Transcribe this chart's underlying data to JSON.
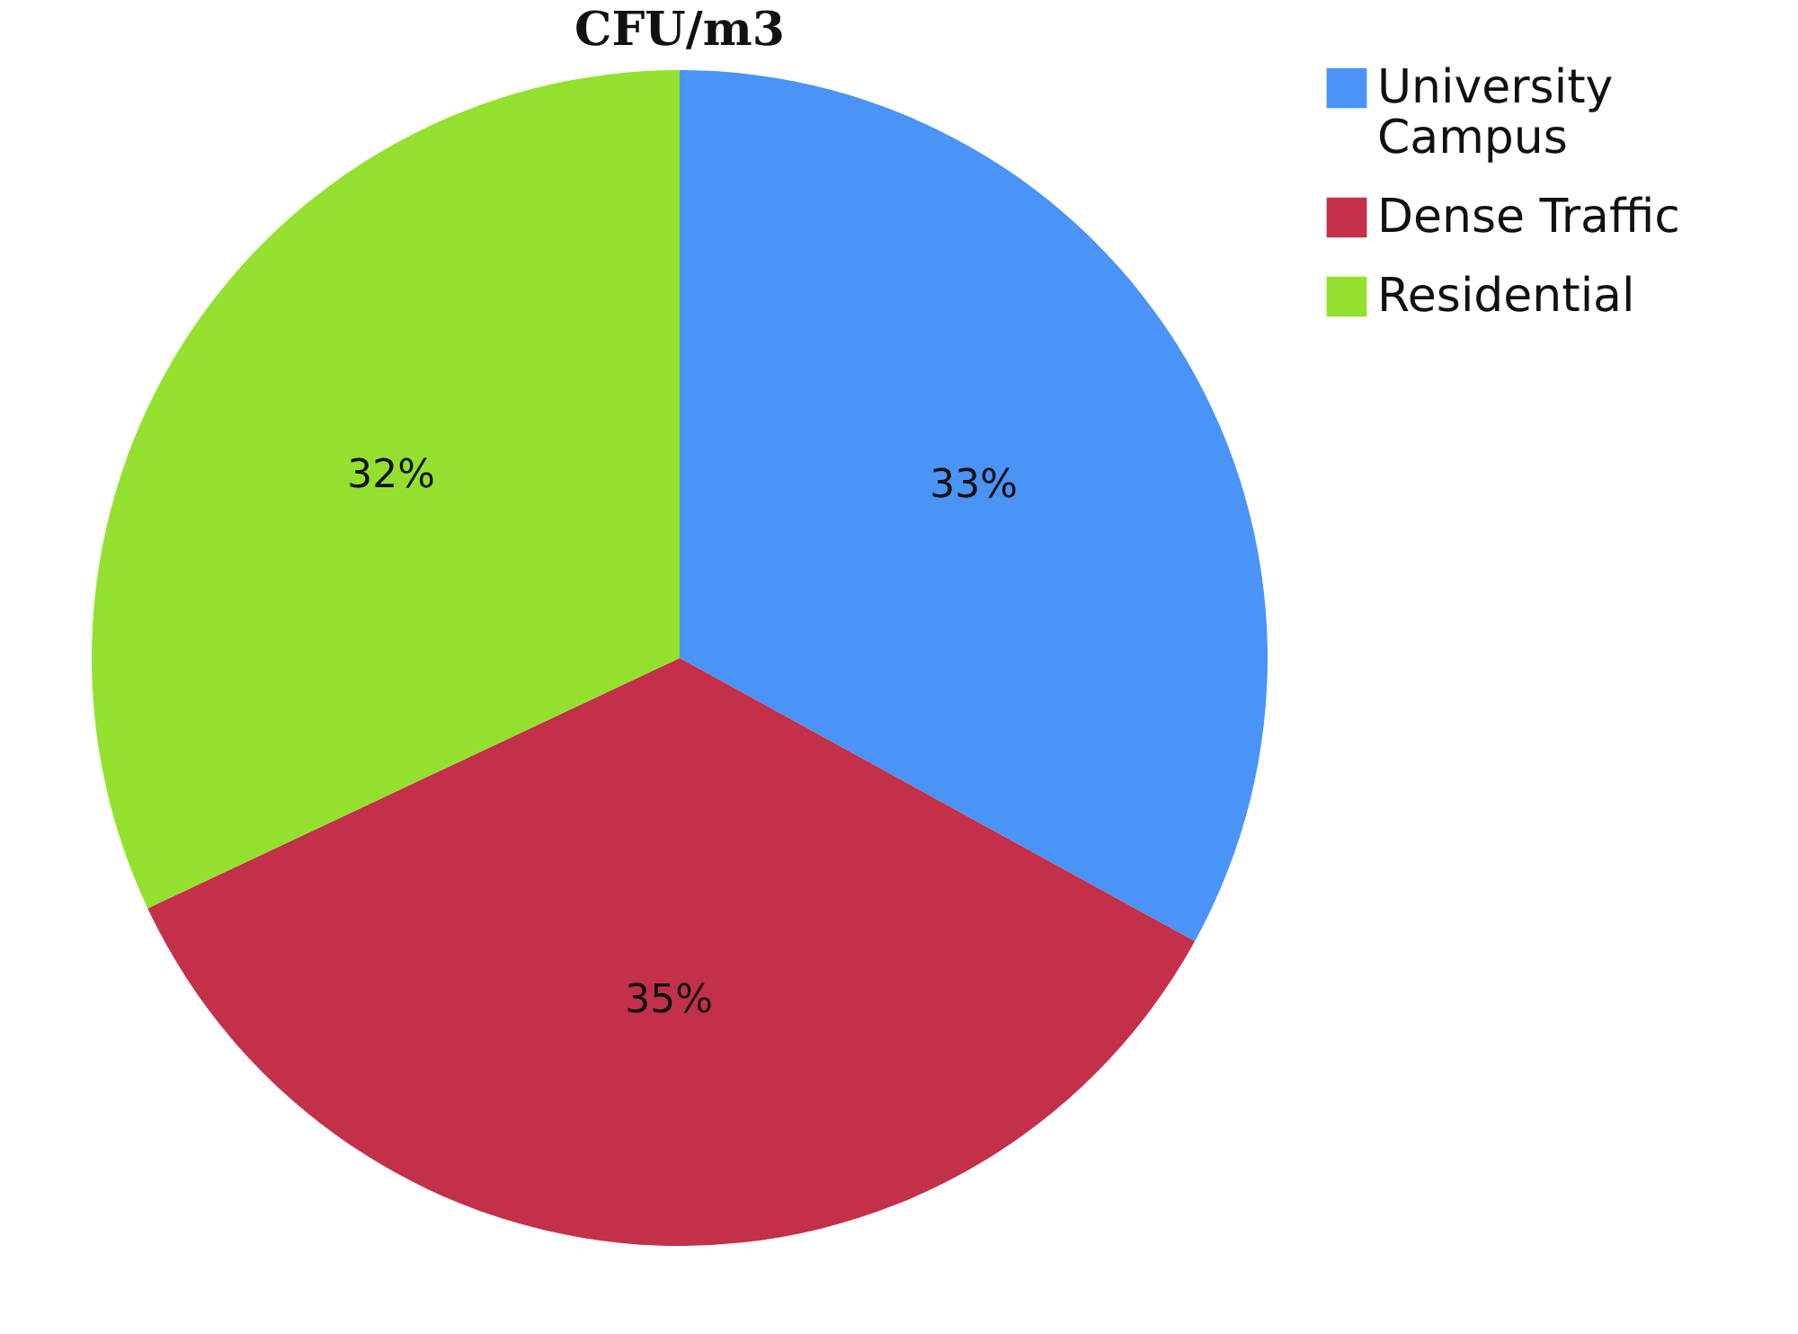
{
  "chart_data": {
    "type": "pie",
    "title": "CFU/m3",
    "categories": [
      "University Campus",
      "Dense Traffic",
      "Residential"
    ],
    "values": [
      33,
      35,
      32
    ],
    "colors": [
      "#4a93f7",
      "#c3304a",
      "#93e12e"
    ],
    "value_labels": [
      "33%",
      "35%",
      "32%"
    ],
    "legend": "right"
  }
}
